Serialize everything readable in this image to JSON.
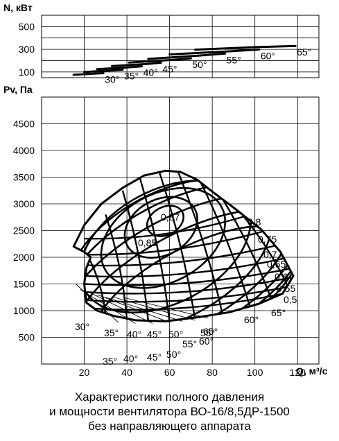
{
  "chart_data": [
    {
      "type": "line",
      "ylabel": "N, кВт",
      "xlim": [
        0,
        130
      ],
      "ylim": [
        50,
        600
      ],
      "y_ticks": [
        100,
        300,
        500
      ],
      "grid": true,
      "series": [
        {
          "name": "30°",
          "x": [
            15,
            24,
            29
          ],
          "y": [
            75,
            85,
            90
          ]
        },
        {
          "name": "35°",
          "x": [
            20,
            31,
            38
          ],
          "y": [
            100,
            112,
            120
          ]
        },
        {
          "name": "40°",
          "x": [
            26,
            40,
            47
          ],
          "y": [
            125,
            140,
            150
          ]
        },
        {
          "name": "45°",
          "x": [
            33,
            49,
            56
          ],
          "y": [
            152,
            170,
            182
          ]
        },
        {
          "name": "50°",
          "x": [
            41,
            60,
            70
          ],
          "y": [
            183,
            205,
            220
          ]
        },
        {
          "name": "55°",
          "x": [
            50,
            74,
            86
          ],
          "y": [
            215,
            245,
            262
          ]
        },
        {
          "name": "60°",
          "x": [
            60,
            88,
            102
          ],
          "y": [
            255,
            282,
            298
          ]
        },
        {
          "name": "65°",
          "x": [
            72,
            102,
            119
          ],
          "y": [
            297,
            320,
            330
          ]
        }
      ]
    },
    {
      "type": "line",
      "ylabel": "Pv, Па",
      "xlabel": "Q, м³/с",
      "xlim": [
        0,
        130
      ],
      "ylim": [
        0,
        5000
      ],
      "x_ticks": [
        20,
        40,
        60,
        80,
        100,
        120
      ],
      "y_ticks": [
        500,
        1000,
        1500,
        2000,
        2500,
        3000,
        3500,
        4000,
        4500
      ],
      "grid": true,
      "outline": {
        "x": [
          15,
          20,
          28,
          38,
          48,
          58,
          65,
          73,
          81,
          91,
          103,
          112,
          118,
          113,
          102,
          88,
          74,
          58,
          44,
          34,
          26,
          21,
          20,
          21,
          23,
          20,
          15
        ],
        "y": [
          2200,
          2600,
          3000,
          3300,
          3530,
          3620,
          3600,
          3450,
          3200,
          2900,
          2520,
          2100,
          1650,
          1320,
          1130,
          970,
          880,
          800,
          820,
          900,
          1000,
          1150,
          1500,
          1800,
          2000,
          2100,
          2200
        ]
      },
      "efficiency_contours": [
        {
          "label": "0,87",
          "cx": 58,
          "cy": 2680,
          "rx": 9,
          "ry": 260
        },
        {
          "label": "0,85",
          "cx": 56,
          "cy": 2560,
          "rx": 18,
          "ry": 520
        },
        {
          "label": "0,8",
          "cx": 57,
          "cy": 2360,
          "rx": 31,
          "ry": 830
        },
        {
          "label": "0,75",
          "cx": 58,
          "cy": 2200,
          "rx": 43,
          "ry": 1060
        },
        {
          "label": "0,7",
          "cx": 60,
          "cy": 2030,
          "rx": 52,
          "ry": 1190
        },
        {
          "label": "0,65",
          "cx": 63,
          "cy": 1850,
          "rx": 59,
          "ry": 1180
        },
        {
          "label": "0,6",
          "cx": 66,
          "cy": 1650,
          "rx": 62,
          "ry": 1110
        },
        {
          "label": "0,55",
          "cx": 69,
          "cy": 1460,
          "rx": 60,
          "ry": 1000
        },
        {
          "label": "0,5",
          "cx": 72,
          "cy": 1300,
          "rx": 54,
          "ry": 890
        }
      ],
      "blade_angles": [
        "30°",
        "35°",
        "40°",
        "45°",
        "50°",
        "55°",
        "60°",
        "65°"
      ],
      "blade_angles_lower": [
        "35°",
        "40°",
        "45°",
        "50°",
        "55°",
        "60°",
        "65°"
      ]
    }
  ],
  "caption": {
    "line1": "Характеристики полного давления",
    "line2": "и мощности вентилятора ВО-16/8,5ДР-1500",
    "line3": "без направляющего аппарата"
  }
}
